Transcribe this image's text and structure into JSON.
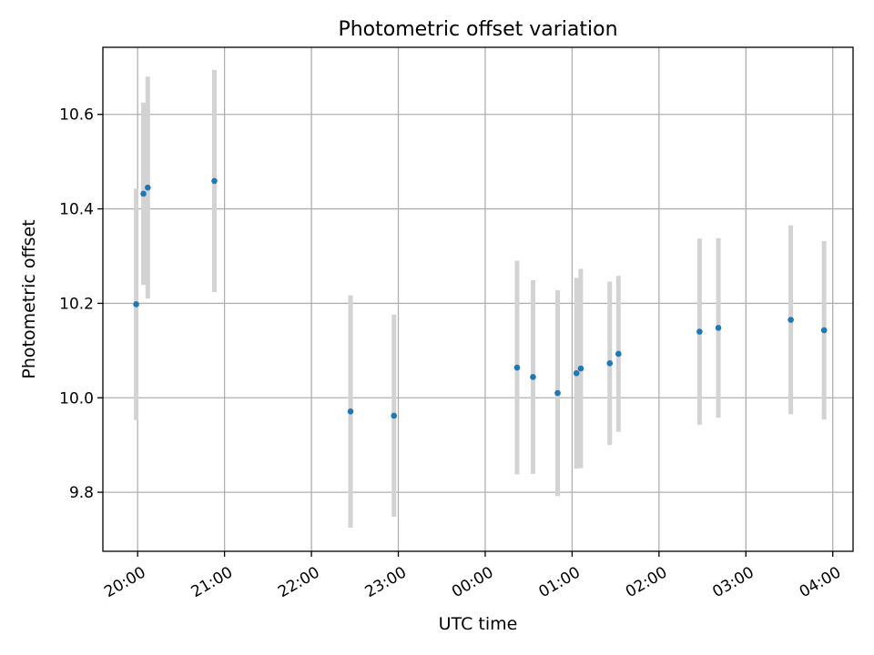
{
  "chart_data": {
    "type": "scatter",
    "title": "Photometric offset variation",
    "xlabel": "UTC time",
    "ylabel": "Photometric offset",
    "x_tick_labels": [
      "20:00",
      "21:00",
      "22:00",
      "23:00",
      "00:00",
      "01:00",
      "02:00",
      "03:00",
      "04:00"
    ],
    "y_tick_labels": [
      "9.8",
      "10.0",
      "10.2",
      "10.4",
      "10.6"
    ],
    "x_ticks": [
      "20:00",
      "21:00",
      "22:00",
      "23:00",
      "00:00",
      "01:00",
      "02:00",
      "03:00",
      "04:00"
    ],
    "y_ticks": [
      9.8,
      10.0,
      10.2,
      10.4,
      10.6
    ],
    "xlim": [
      "19:36",
      "04:14"
    ],
    "ylim": [
      9.675,
      10.742
    ],
    "grid": true,
    "colors": {
      "marker": "#1f77b4",
      "errorbar": "#d3d3d3"
    },
    "points": [
      {
        "x": "19:59",
        "y": 10.198,
        "yerr": 0.245
      },
      {
        "x": "20:04",
        "y": 10.432,
        "yerr": 0.193
      },
      {
        "x": "20:07",
        "y": 10.445,
        "yerr": 0.235
      },
      {
        "x": "20:53",
        "y": 10.459,
        "yerr": 0.235
      },
      {
        "x": "22:27",
        "y": 9.971,
        "yerr": 0.246
      },
      {
        "x": "22:57",
        "y": 9.962,
        "yerr": 0.214
      },
      {
        "x": "00:22",
        "y": 10.064,
        "yerr": 0.226
      },
      {
        "x": "00:33",
        "y": 10.044,
        "yerr": 0.205
      },
      {
        "x": "00:50",
        "y": 10.01,
        "yerr": 0.218
      },
      {
        "x": "01:03",
        "y": 10.052,
        "yerr": 0.202
      },
      {
        "x": "01:06",
        "y": 10.062,
        "yerr": 0.211
      },
      {
        "x": "01:26",
        "y": 10.073,
        "yerr": 0.173
      },
      {
        "x": "01:32",
        "y": 10.093,
        "yerr": 0.165
      },
      {
        "x": "02:28",
        "y": 10.14,
        "yerr": 0.197
      },
      {
        "x": "02:41",
        "y": 10.148,
        "yerr": 0.19
      },
      {
        "x": "03:31",
        "y": 10.165,
        "yerr": 0.2
      },
      {
        "x": "03:54",
        "y": 10.143,
        "yerr": 0.189
      }
    ]
  }
}
